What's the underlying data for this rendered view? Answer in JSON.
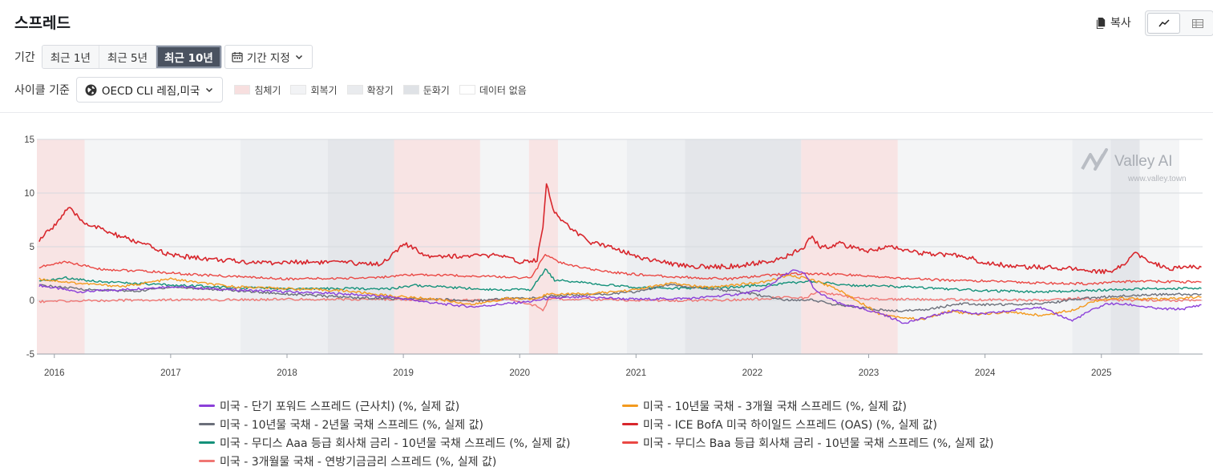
{
  "page": {
    "title": "스프레드"
  },
  "toolbar": {
    "copy_label": "복사"
  },
  "period": {
    "label": "기간",
    "options": [
      "최근 1년",
      "최근 5년",
      "최근 10년"
    ],
    "active_index": 2,
    "custom_label": "기간 지정"
  },
  "cycle": {
    "label": "사이클 기준",
    "selected": "OECD CLI 레짐,미국",
    "legend": [
      {
        "label": "침체기",
        "color": "#f7dfdf"
      },
      {
        "label": "회복기",
        "color": "#f2f3f5"
      },
      {
        "label": "확장기",
        "color": "#e9ebee"
      },
      {
        "label": "둔화기",
        "color": "#dfe2e6"
      },
      {
        "label": "데이터 없음",
        "color": "#ffffff"
      }
    ]
  },
  "watermark": {
    "brand": "Valley AI",
    "url": "www.valley.town"
  },
  "chart_data": {
    "type": "line",
    "ylim": [
      -5,
      15
    ],
    "yticks": [
      -5,
      0,
      5,
      10,
      15
    ],
    "xlim": [
      2015.85,
      2025.87
    ],
    "xticks": [
      {
        "v": 2016,
        "label": "2016"
      },
      {
        "v": 2017,
        "label": "2017"
      },
      {
        "v": 2018,
        "label": "2018"
      },
      {
        "v": 2019,
        "label": "2019"
      },
      {
        "v": 2020,
        "label": "2020"
      },
      {
        "v": 2021,
        "label": "2021"
      },
      {
        "v": 2022,
        "label": "2022"
      },
      {
        "v": 2023,
        "label": "2023"
      },
      {
        "v": 2024,
        "label": "2024"
      },
      {
        "v": 2025,
        "label": "2025"
      }
    ],
    "regimes": [
      {
        "start": 2015.85,
        "end": 2016.26,
        "phase": "침체기"
      },
      {
        "start": 2016.26,
        "end": 2017.6,
        "phase": "회복기"
      },
      {
        "start": 2017.6,
        "end": 2018.35,
        "phase": "확장기"
      },
      {
        "start": 2018.35,
        "end": 2018.92,
        "phase": "둔화기"
      },
      {
        "start": 2018.92,
        "end": 2019.66,
        "phase": "침체기"
      },
      {
        "start": 2019.66,
        "end": 2020.08,
        "phase": "회복기"
      },
      {
        "start": 2020.08,
        "end": 2020.33,
        "phase": "침체기"
      },
      {
        "start": 2020.33,
        "end": 2020.92,
        "phase": "회복기"
      },
      {
        "start": 2020.92,
        "end": 2021.42,
        "phase": "확장기"
      },
      {
        "start": 2021.42,
        "end": 2022.42,
        "phase": "둔화기"
      },
      {
        "start": 2022.42,
        "end": 2023.25,
        "phase": "침체기"
      },
      {
        "start": 2023.25,
        "end": 2024.75,
        "phase": "회복기"
      },
      {
        "start": 2024.75,
        "end": 2025.08,
        "phase": "확장기"
      },
      {
        "start": 2025.08,
        "end": 2025.33,
        "phase": "둔화기"
      },
      {
        "start": 2025.33,
        "end": 2025.67,
        "phase": "회복기"
      }
    ],
    "series": [
      {
        "name": "미국 - 단기 포워드 스프레드 (근사치) (%, 실제 값)",
        "color": "#8b3fd9",
        "points": [
          [
            2015.87,
            1.4
          ],
          [
            2016.2,
            0.8
          ],
          [
            2016.6,
            1.0
          ],
          [
            2017.0,
            1.3
          ],
          [
            2017.5,
            1.0
          ],
          [
            2018.0,
            0.8
          ],
          [
            2018.5,
            0.6
          ],
          [
            2018.9,
            0.3
          ],
          [
            2019.3,
            -0.3
          ],
          [
            2019.6,
            -0.6
          ],
          [
            2019.9,
            -0.3
          ],
          [
            2020.1,
            -0.1
          ],
          [
            2020.25,
            0.2
          ],
          [
            2020.6,
            0.3
          ],
          [
            2021.0,
            0.1
          ],
          [
            2021.5,
            0.2
          ],
          [
            2021.9,
            0.6
          ],
          [
            2022.1,
            1.0
          ],
          [
            2022.25,
            2.2
          ],
          [
            2022.35,
            2.8
          ],
          [
            2022.45,
            2.5
          ],
          [
            2022.55,
            0.8
          ],
          [
            2022.75,
            -0.3
          ],
          [
            2022.95,
            -0.8
          ],
          [
            2023.1,
            -1.2
          ],
          [
            2023.3,
            -2.1
          ],
          [
            2023.5,
            -1.6
          ],
          [
            2023.75,
            -0.9
          ],
          [
            2023.95,
            -1.3
          ],
          [
            2024.2,
            -1.0
          ],
          [
            2024.45,
            -0.6
          ],
          [
            2024.6,
            -1.2
          ],
          [
            2024.75,
            -1.9
          ],
          [
            2024.9,
            -1.0
          ],
          [
            2025.05,
            -0.3
          ],
          [
            2025.25,
            -0.4
          ],
          [
            2025.5,
            -0.8
          ],
          [
            2025.7,
            -0.8
          ],
          [
            2025.86,
            -0.4
          ]
        ]
      },
      {
        "name": "미국 - 10년물 국채 - 3개월 국채 스프레드 (%, 실제 값)",
        "color": "#f39a1e",
        "points": [
          [
            2015.87,
            2.0
          ],
          [
            2016.2,
            1.6
          ],
          [
            2016.6,
            1.3
          ],
          [
            2017.0,
            2.0
          ],
          [
            2017.5,
            1.3
          ],
          [
            2018.0,
            1.1
          ],
          [
            2018.5,
            0.9
          ],
          [
            2018.9,
            0.4
          ],
          [
            2019.3,
            0.1
          ],
          [
            2019.6,
            -0.4
          ],
          [
            2019.9,
            0.2
          ],
          [
            2020.1,
            0.1
          ],
          [
            2020.25,
            0.6
          ],
          [
            2020.6,
            0.6
          ],
          [
            2021.0,
            1.0
          ],
          [
            2021.3,
            1.6
          ],
          [
            2021.6,
            1.2
          ],
          [
            2021.9,
            1.5
          ],
          [
            2022.1,
            1.7
          ],
          [
            2022.3,
            2.3
          ],
          [
            2022.5,
            2.0
          ],
          [
            2022.7,
            1.2
          ],
          [
            2022.9,
            0.0
          ],
          [
            2023.1,
            -1.3
          ],
          [
            2023.3,
            -1.6
          ],
          [
            2023.45,
            -1.8
          ],
          [
            2023.7,
            -1.0
          ],
          [
            2023.9,
            -1.3
          ],
          [
            2024.2,
            -1.1
          ],
          [
            2024.5,
            -1.4
          ],
          [
            2024.75,
            -0.9
          ],
          [
            2024.95,
            0.0
          ],
          [
            2025.2,
            0.2
          ],
          [
            2025.5,
            0.1
          ],
          [
            2025.86,
            0.3
          ]
        ]
      },
      {
        "name": "미국 - 10년물 국채 - 2년물 국채 스프레드 (%, 실제 값)",
        "color": "#6b6f7a",
        "points": [
          [
            2015.87,
            1.4
          ],
          [
            2016.3,
            1.0
          ],
          [
            2016.7,
            0.85
          ],
          [
            2017.0,
            1.25
          ],
          [
            2017.5,
            0.95
          ],
          [
            2018.0,
            0.6
          ],
          [
            2018.5,
            0.3
          ],
          [
            2018.9,
            0.15
          ],
          [
            2019.3,
            0.1
          ],
          [
            2019.6,
            -0.05
          ],
          [
            2019.9,
            0.2
          ],
          [
            2020.1,
            0.2
          ],
          [
            2020.3,
            0.45
          ],
          [
            2020.7,
            0.55
          ],
          [
            2021.0,
            0.8
          ],
          [
            2021.3,
            1.5
          ],
          [
            2021.6,
            1.1
          ],
          [
            2021.9,
            0.8
          ],
          [
            2022.1,
            0.4
          ],
          [
            2022.3,
            0.0
          ],
          [
            2022.5,
            0.1
          ],
          [
            2022.7,
            -0.4
          ],
          [
            2022.95,
            -0.7
          ],
          [
            2023.2,
            -1.0
          ],
          [
            2023.45,
            -0.9
          ],
          [
            2023.8,
            -0.3
          ],
          [
            2024.0,
            -0.4
          ],
          [
            2024.3,
            -0.35
          ],
          [
            2024.6,
            -0.2
          ],
          [
            2024.75,
            0.1
          ],
          [
            2025.0,
            0.3
          ],
          [
            2025.3,
            0.5
          ],
          [
            2025.6,
            0.55
          ],
          [
            2025.86,
            0.6
          ]
        ]
      },
      {
        "name": "미국 - ICE BofA 미국 하이일드 스프레드 (OAS) (%, 실제 값)",
        "color": "#d8262c",
        "points": [
          [
            2015.87,
            5.6
          ],
          [
            2016.0,
            7.0
          ],
          [
            2016.12,
            8.6
          ],
          [
            2016.25,
            7.3
          ],
          [
            2016.5,
            6.2
          ],
          [
            2016.8,
            5.1
          ],
          [
            2017.0,
            4.2
          ],
          [
            2017.3,
            3.9
          ],
          [
            2017.6,
            3.6
          ],
          [
            2017.9,
            3.5
          ],
          [
            2018.2,
            3.6
          ],
          [
            2018.5,
            3.5
          ],
          [
            2018.8,
            3.4
          ],
          [
            2018.95,
            4.6
          ],
          [
            2019.0,
            5.3
          ],
          [
            2019.2,
            4.2
          ],
          [
            2019.5,
            4.1
          ],
          [
            2019.8,
            4.2
          ],
          [
            2020.0,
            3.6
          ],
          [
            2020.15,
            3.8
          ],
          [
            2020.2,
            7.0
          ],
          [
            2020.23,
            10.8
          ],
          [
            2020.3,
            8.2
          ],
          [
            2020.45,
            6.6
          ],
          [
            2020.6,
            5.4
          ],
          [
            2020.8,
            5.0
          ],
          [
            2021.0,
            4.1
          ],
          [
            2021.3,
            3.4
          ],
          [
            2021.6,
            3.1
          ],
          [
            2021.9,
            3.2
          ],
          [
            2022.1,
            3.6
          ],
          [
            2022.25,
            3.8
          ],
          [
            2022.45,
            5.0
          ],
          [
            2022.5,
            5.9
          ],
          [
            2022.6,
            4.9
          ],
          [
            2022.75,
            5.3
          ],
          [
            2022.95,
            4.6
          ],
          [
            2023.2,
            5.0
          ],
          [
            2023.5,
            4.3
          ],
          [
            2023.8,
            4.2
          ],
          [
            2024.0,
            3.5
          ],
          [
            2024.3,
            3.1
          ],
          [
            2024.6,
            3.1
          ],
          [
            2024.85,
            2.8
          ],
          [
            2025.05,
            2.7
          ],
          [
            2025.2,
            3.2
          ],
          [
            2025.28,
            4.5
          ],
          [
            2025.4,
            3.6
          ],
          [
            2025.6,
            3.0
          ],
          [
            2025.86,
            3.1
          ]
        ]
      },
      {
        "name": "미국 - 무디스 Aaa 등급 회사채 금리 - 10년물 국채 스프레드 (%, 실제 값)",
        "color": "#14917a",
        "points": [
          [
            2015.87,
            1.75
          ],
          [
            2016.1,
            2.1
          ],
          [
            2016.4,
            1.75
          ],
          [
            2016.8,
            1.5
          ],
          [
            2017.2,
            1.35
          ],
          [
            2017.6,
            1.2
          ],
          [
            2018.0,
            1.05
          ],
          [
            2018.5,
            1.1
          ],
          [
            2018.9,
            1.1
          ],
          [
            2019.1,
            1.4
          ],
          [
            2019.5,
            1.15
          ],
          [
            2019.8,
            1.0
          ],
          [
            2020.1,
            1.0
          ],
          [
            2020.22,
            2.9
          ],
          [
            2020.3,
            1.9
          ],
          [
            2020.6,
            1.6
          ],
          [
            2020.9,
            1.3
          ],
          [
            2021.3,
            1.1
          ],
          [
            2021.8,
            1.2
          ],
          [
            2022.2,
            1.5
          ],
          [
            2022.5,
            1.8
          ],
          [
            2022.8,
            1.4
          ],
          [
            2023.2,
            1.3
          ],
          [
            2023.6,
            1.1
          ],
          [
            2024.0,
            0.9
          ],
          [
            2024.5,
            0.8
          ],
          [
            2025.0,
            0.95
          ],
          [
            2025.4,
            1.1
          ],
          [
            2025.86,
            1.1
          ]
        ]
      },
      {
        "name": "미국 - 무디스 Baa 등급 회사채 금리 - 10년물 국채 스프레드 (%, 실제 값)",
        "color": "#ea4844",
        "points": [
          [
            2015.87,
            3.1
          ],
          [
            2016.1,
            3.6
          ],
          [
            2016.4,
            2.9
          ],
          [
            2016.8,
            2.7
          ],
          [
            2017.2,
            2.4
          ],
          [
            2017.6,
            2.2
          ],
          [
            2018.0,
            2.0
          ],
          [
            2018.5,
            2.05
          ],
          [
            2018.9,
            2.2
          ],
          [
            2019.1,
            2.4
          ],
          [
            2019.5,
            2.3
          ],
          [
            2019.8,
            2.2
          ],
          [
            2020.1,
            2.1
          ],
          [
            2020.22,
            4.3
          ],
          [
            2020.35,
            3.5
          ],
          [
            2020.6,
            2.9
          ],
          [
            2020.9,
            2.5
          ],
          [
            2021.3,
            2.2
          ],
          [
            2021.8,
            2.0
          ],
          [
            2022.2,
            2.4
          ],
          [
            2022.5,
            2.5
          ],
          [
            2022.8,
            2.4
          ],
          [
            2023.2,
            2.1
          ],
          [
            2023.6,
            1.9
          ],
          [
            2024.0,
            1.8
          ],
          [
            2024.5,
            1.6
          ],
          [
            2024.9,
            1.55
          ],
          [
            2025.3,
            1.8
          ],
          [
            2025.86,
            1.7
          ]
        ]
      },
      {
        "name": "미국 - 3개월물 국채 - 연방기금금리 스프레드 (%, 실제 값)",
        "color": "#f07673",
        "points": [
          [
            2015.87,
            -0.1
          ],
          [
            2016.5,
            0.0
          ],
          [
            2017.0,
            0.05
          ],
          [
            2017.5,
            0.05
          ],
          [
            2018.0,
            0.1
          ],
          [
            2018.5,
            0.1
          ],
          [
            2018.9,
            0.1
          ],
          [
            2019.3,
            0.05
          ],
          [
            2019.6,
            0.0
          ],
          [
            2019.9,
            0.05
          ],
          [
            2020.15,
            -0.5
          ],
          [
            2020.2,
            -1.0
          ],
          [
            2020.25,
            0.15
          ],
          [
            2020.5,
            0.1
          ],
          [
            2021.0,
            0.0
          ],
          [
            2021.5,
            -0.02
          ],
          [
            2022.0,
            0.1
          ],
          [
            2022.3,
            0.3
          ],
          [
            2022.45,
            0.2
          ],
          [
            2022.55,
            0.8
          ],
          [
            2022.7,
            0.6
          ],
          [
            2022.9,
            0.2
          ],
          [
            2023.2,
            0.1
          ],
          [
            2023.6,
            0.1
          ],
          [
            2024.0,
            0.05
          ],
          [
            2024.5,
            0.0
          ],
          [
            2024.8,
            0.2
          ],
          [
            2025.0,
            0.05
          ],
          [
            2025.5,
            0.0
          ],
          [
            2025.86,
            0.0
          ]
        ]
      }
    ]
  }
}
